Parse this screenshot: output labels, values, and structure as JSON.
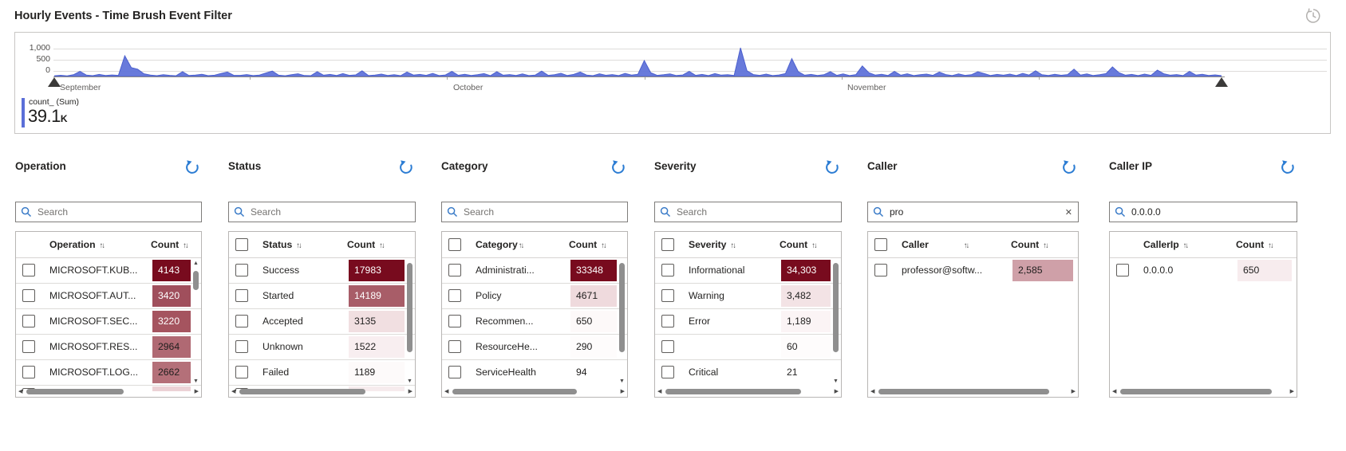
{
  "header": {
    "title": "Hourly Events - Time Brush Event Filter"
  },
  "icons": {
    "sort": "↑↓",
    "clear": "✕",
    "left": "◀",
    "right": "▶",
    "up": "▲",
    "down": "▼"
  },
  "chart": {
    "legend_label": "count_ (Sum)",
    "metric_value": "39.1",
    "metric_suffix": "K",
    "accent_color": "#5b6fd8",
    "chart_data": {
      "type": "area",
      "title": "",
      "xlabel": "",
      "ylabel": "",
      "series_name": "count_ (Sum)",
      "total_label": "39.1K",
      "ylim": [
        0,
        1000
      ],
      "ytick_labels": [
        "1,000",
        "500",
        "0"
      ],
      "x_months": [
        "September",
        "October",
        "November"
      ],
      "grid": true,
      "legend_position": "bottom-left",
      "values": [
        22,
        38,
        20,
        55,
        160,
        45,
        24,
        65,
        30,
        48,
        35,
        650,
        280,
        230,
        85,
        42,
        26,
        58,
        36,
        22,
        150,
        30,
        45,
        70,
        25,
        40,
        95,
        140,
        35,
        35,
        60,
        28,
        45,
        110,
        170,
        40,
        22,
        55,
        85,
        30,
        25,
        150,
        40,
        65,
        30,
        90,
        35,
        50,
        180,
        28,
        42,
        75,
        30,
        55,
        25,
        140,
        45,
        65,
        35,
        95,
        28,
        48,
        160,
        38,
        70,
        30,
        55,
        90,
        25,
        150,
        40,
        60,
        32,
        80,
        28,
        45,
        170,
        35,
        55,
        100,
        30,
        65,
        140,
        45,
        25,
        85,
        38,
        60,
        28,
        95,
        45,
        70,
        500,
        120,
        35,
        55,
        80,
        30,
        48,
        160,
        36,
        65,
        28,
        90,
        42,
        55,
        30,
        900,
        180,
        60,
        35,
        75,
        28,
        48,
        90,
        560,
        150,
        40,
        65,
        30,
        55,
        150,
        35,
        80,
        28,
        60,
        330,
        120,
        45,
        70,
        30,
        160,
        40,
        85,
        28,
        55,
        75,
        35,
        140,
        60,
        28,
        80,
        35,
        55,
        150,
        90,
        30,
        65,
        40,
        75,
        28,
        95,
        45,
        180,
        55,
        30,
        70,
        38,
        60,
        230,
        45,
        80,
        30,
        55,
        90,
        300,
        120,
        40,
        65,
        28,
        75,
        35,
        200,
        85,
        40,
        60,
        28,
        160,
        45,
        70,
        30,
        50,
        24
      ]
    }
  },
  "panels": [
    {
      "title": "Operation",
      "search": {
        "placeholder": "Search",
        "value": ""
      },
      "columns": {
        "name": "Operation",
        "count": "Count"
      },
      "rows": [
        {
          "label": "MICROSOFT.KUB...",
          "count": "4143",
          "bg": "#780b1e",
          "fg": "#ffffff"
        },
        {
          "label": "MICROSOFT.AUT...",
          "count": "3420",
          "bg": "#a04f5c",
          "fg": "#ffffff"
        },
        {
          "label": "MICROSOFT.SEC...",
          "count": "3220",
          "bg": "#a5545f",
          "fg": "#ffffff"
        },
        {
          "label": "MICROSOFT.RES...",
          "count": "2964",
          "bg": "#b06973",
          "fg": "#1f1e1d"
        },
        {
          "label": "MICROSOFT.LOG...",
          "count": "2662",
          "bg": "#b47079",
          "fg": "#1f1e1d"
        }
      ],
      "partial_bg": "#ecd2d6"
    },
    {
      "title": "Status",
      "search": {
        "placeholder": "Search",
        "value": ""
      },
      "columns": {
        "name": "Status",
        "count": "Count"
      },
      "rows": [
        {
          "label": "Success",
          "count": "17983",
          "bg": "#780b1e",
          "fg": "#ffffff"
        },
        {
          "label": "Started",
          "count": "14189",
          "bg": "#a85d68",
          "fg": "#ffffff"
        },
        {
          "label": "Accepted",
          "count": "3135",
          "bg": "#f1dfe1",
          "fg": "#1f1e1d"
        },
        {
          "label": "Unknown",
          "count": "1522",
          "bg": "#f8eef0",
          "fg": "#1f1e1d"
        },
        {
          "label": "Failed",
          "count": "1189",
          "bg": "#fdfafa",
          "fg": "#1f1e1d"
        }
      ],
      "partial_bg": "#f6ebed"
    },
    {
      "title": "Category",
      "search": {
        "placeholder": "Search",
        "value": ""
      },
      "columns": {
        "name": "Category",
        "count": "Count"
      },
      "rows": [
        {
          "label": "Administrati...",
          "count": "33348",
          "bg": "#780b1e",
          "fg": "#ffffff"
        },
        {
          "label": "Policy",
          "count": "4671",
          "bg": "#efdadd",
          "fg": "#1f1e1d"
        },
        {
          "label": "Recommen...",
          "count": "650",
          "bg": "#fdf9f9",
          "fg": "#1f1e1d"
        },
        {
          "label": "ResourceHe...",
          "count": "290",
          "bg": "#fefcfc",
          "fg": "#1f1e1d"
        },
        {
          "label": "ServiceHealth",
          "count": "94",
          "bg": "#ffffff",
          "fg": "#1f1e1d"
        }
      ]
    },
    {
      "title": "Severity",
      "search": {
        "placeholder": "Search",
        "value": ""
      },
      "columns": {
        "name": "Severity",
        "count": "Count"
      },
      "rows": [
        {
          "label": "Informational",
          "count": "34,303",
          "bg": "#780b1e",
          "fg": "#ffffff"
        },
        {
          "label": "Warning",
          "count": "3,482",
          "bg": "#f3e3e5",
          "fg": "#1f1e1d"
        },
        {
          "label": "Error",
          "count": "1,189",
          "bg": "#fbf4f5",
          "fg": "#1f1e1d"
        },
        {
          "label": "",
          "count": "60",
          "bg": "#fefcfc",
          "fg": "#1f1e1d"
        },
        {
          "label": "Critical",
          "count": "21",
          "bg": "#ffffff",
          "fg": "#1f1e1d"
        }
      ]
    },
    {
      "title": "Caller",
      "search": {
        "value": "pro"
      },
      "columns": {
        "name": "Caller",
        "count": "Count"
      },
      "rows": [
        {
          "label": "professor@softw...",
          "count": "2,585",
          "bg": "#cfa0a8",
          "fg": "#1f1e1d"
        }
      ]
    },
    {
      "title": "Caller IP",
      "search": {
        "value": "0.0.0.0"
      },
      "columns": {
        "name": "CallerIp",
        "count": "Count"
      },
      "rows": [
        {
          "label": "0.0.0.0",
          "count": "650",
          "bg": "#f7ecee",
          "fg": "#1f1e1d"
        }
      ]
    }
  ]
}
